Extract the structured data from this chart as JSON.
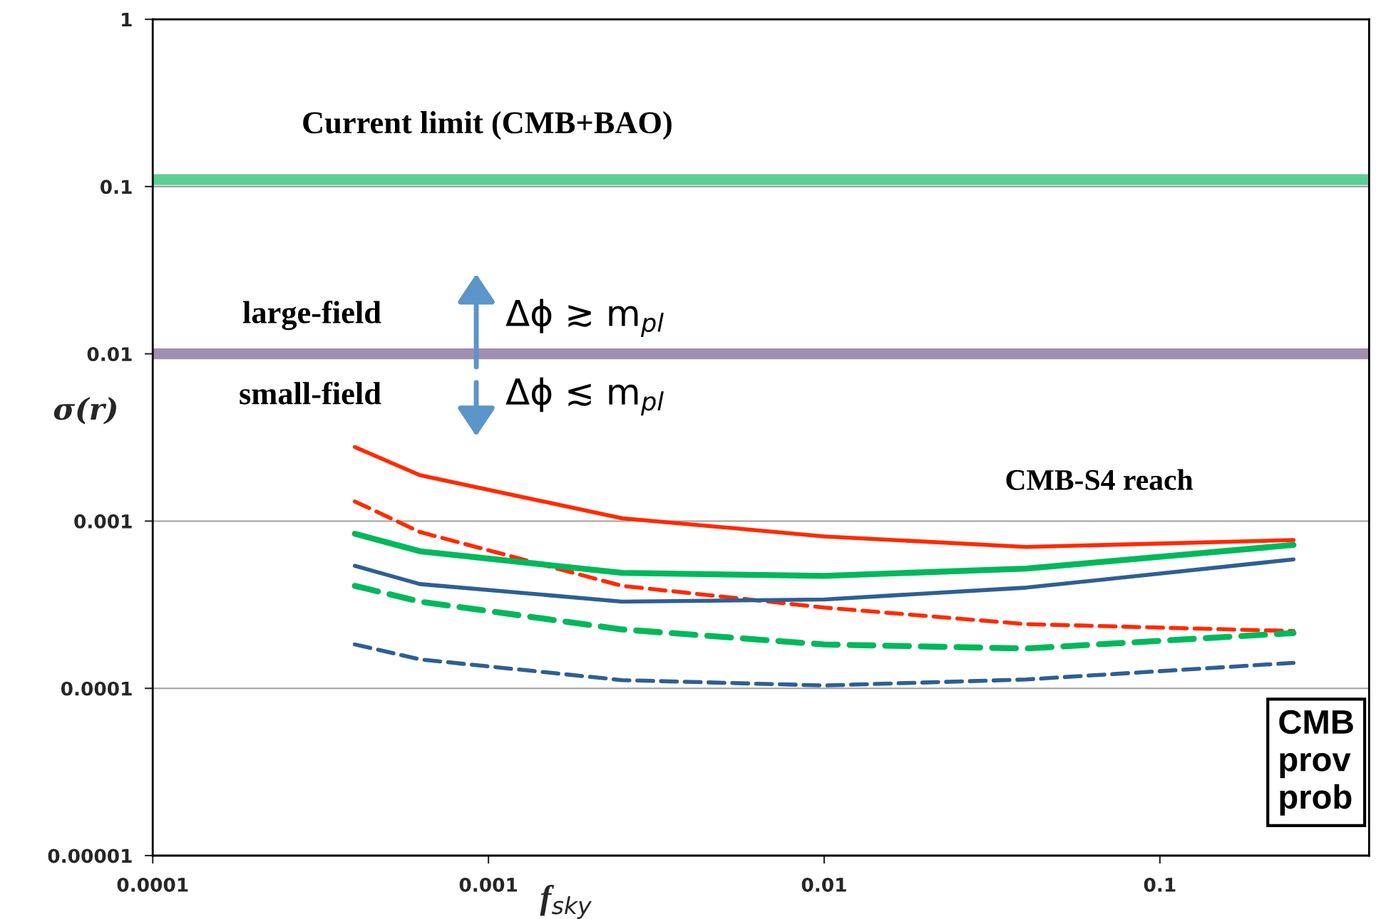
{
  "chart_data": {
    "type": "line",
    "log": "xy",
    "xlabel": "f$_{sky}$",
    "ylabel": "σ(r)",
    "x": [
      0.0004,
      0.000625,
      0.0025,
      0.01,
      0.04,
      0.25
    ],
    "series": [
      {
        "color": "#ff2a00",
        "line_style": "solid",
        "values": [
          0.00277,
          0.00188,
          0.00104,
          0.00081,
          0.0007,
          0.00077
        ]
      },
      {
        "color": "#ff2a00",
        "line_style": "dashed",
        "values": [
          0.00131,
          0.00086,
          0.00041,
          0.000304,
          0.000242,
          0.00022
        ]
      },
      {
        "color": "#00b85c",
        "line_style": "solid",
        "values": [
          0.00084,
          0.00066,
          0.00049,
          0.00047,
          0.00052,
          0.00072
        ]
      },
      {
        "color": "#2e5f94",
        "line_style": "solid",
        "values": [
          0.00054,
          0.00042,
          0.00033,
          0.00034,
          0.0004,
          0.00059
        ]
      },
      {
        "color": "#00b85c",
        "line_style": "dashed",
        "values": [
          0.00041,
          0.00033,
          0.000225,
          0.000183,
          0.000173,
          0.000214
        ]
      },
      {
        "color": "#2e5f94",
        "line_style": "dashed",
        "values": [
          0.000183,
          0.000149,
          0.000112,
          0.000104,
          0.000113,
          0.000142
        ]
      }
    ],
    "xlim": [
      0.0001,
      0.42
    ],
    "ylim": [
      1e-05,
      1
    ],
    "xticks": [
      0.0001,
      0.001,
      0.01,
      0.1
    ],
    "yticks": [
      {
        "value": 1e-05,
        "label": "0.00001"
      },
      0.0001,
      0.001,
      0.01,
      0.1,
      1
    ],
    "grid": "y",
    "marker": "none",
    "legend": false,
    "ref_lines": [
      {
        "axis": "y",
        "value": 0.11,
        "label": "Current limit (CMB+BAO)",
        "color": "#5ccf95"
      },
      {
        "axis": "y",
        "value": 0.01,
        "color": "#a090b0"
      }
    ],
    "annotations": [
      "large-field",
      "small-field",
      "Δϕ ≳ m$_{pl}$",
      "Δϕ ≲ m$_{pl}$",
      "CMB-S4 reach",
      "CMB\nprov\nprob"
    ]
  }
}
